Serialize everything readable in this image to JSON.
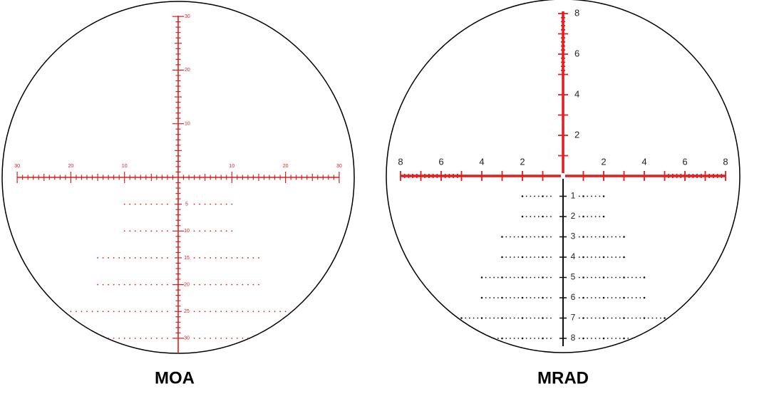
{
  "reticles": [
    {
      "label": "MOA",
      "vertical_labels": [
        "30",
        "20",
        "10"
      ],
      "horizontal_labels": [
        "30",
        "20",
        "10",
        "10",
        "20",
        "30"
      ],
      "drop_labels": [
        "5",
        "10",
        "15",
        "20",
        "25",
        "30"
      ]
    },
    {
      "label": "MRAD",
      "vertical_labels": [
        "8",
        "6",
        "4",
        "2"
      ],
      "horizontal_labels": [
        "8",
        "6",
        "4",
        "2",
        "2",
        "4",
        "6",
        "8"
      ],
      "drop_labels": [
        "1",
        "2",
        "3",
        "4",
        "5",
        "6",
        "7",
        "8"
      ]
    }
  ]
}
